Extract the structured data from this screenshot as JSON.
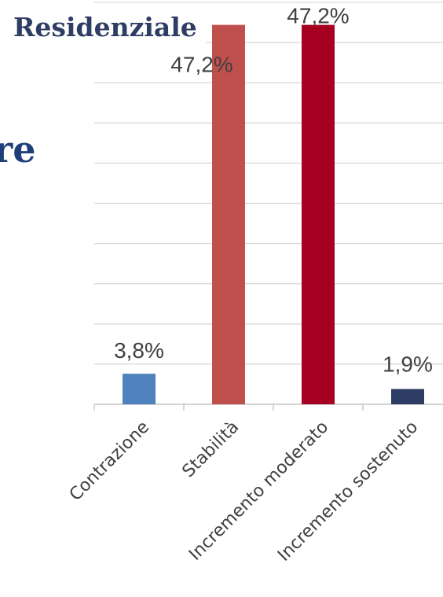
{
  "chart_data": {
    "type": "bar",
    "title": "Residenziale",
    "side_text": "re",
    "categories": [
      "Contrazione",
      "Stabilità",
      "Incremento moderato",
      "Incremento sostenuto"
    ],
    "values": [
      3.8,
      47.2,
      47.2,
      1.9
    ],
    "value_labels": [
      "3,8%",
      "47,2%",
      "47,2%",
      "1,9%"
    ],
    "colors": [
      "#4f81bd",
      "#c0504d",
      "#a50021",
      "#2e3d63"
    ],
    "ylim": [
      0,
      50
    ],
    "grid": true,
    "xlabel": "",
    "ylabel": ""
  }
}
